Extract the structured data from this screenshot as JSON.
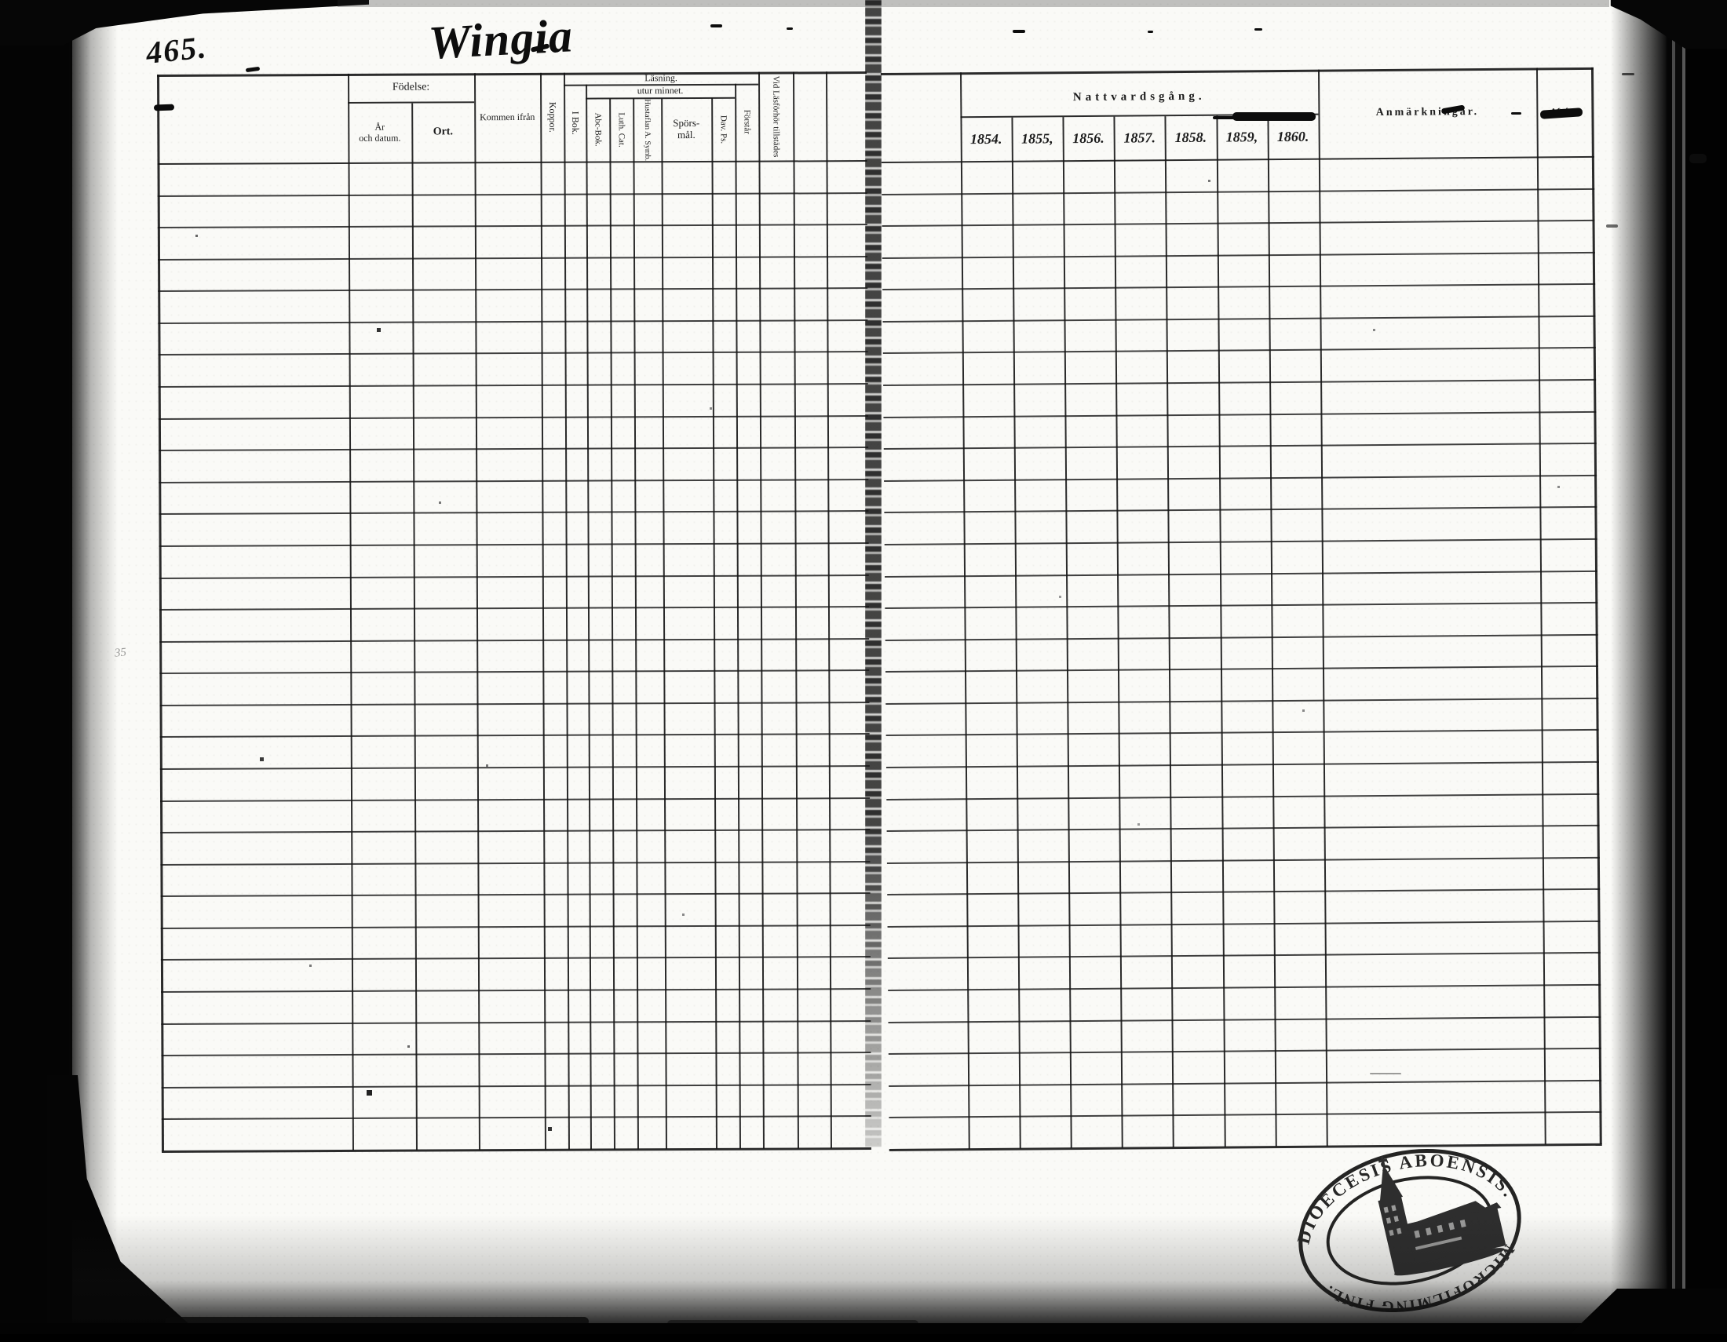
{
  "document": {
    "page_number": "465.",
    "parish_title": "Wingia",
    "margin_note": "35"
  },
  "left_table": {
    "columns": {
      "fodelse_group": "Födelse:",
      "ar_line1": "År",
      "ar_line2": "och datum.",
      "ort": "Ort.",
      "kommen_ifran": "Kommen ifrån",
      "koppor": "Koppor.",
      "lasning_group": "Läsning.",
      "utur_minnet": "utur minnet.",
      "i_bok": "I Bok.",
      "abc_bok": "Abc-Bok.",
      "luth_cat": "Luth. Cat.",
      "hustaflan_symb": "Hustaflan A. Symb.",
      "sporsmal_line1": "Spörs-",
      "sporsmal_line2": "mål.",
      "dav_ps": "Dav. Ps.",
      "forstar": "Förstår",
      "vid_lasforhor": "Vid Läsförhör tillstädes"
    },
    "row_count": 31
  },
  "right_table": {
    "columns": {
      "nattvardsgang_group": "Nattvardsgång.",
      "years": [
        "1854.",
        "1855,",
        "1856.",
        "1857.",
        "1858.",
        "1859,",
        "1860."
      ],
      "anmarkningar": "Anmärkningar.",
      "afgatt": "Afgått."
    },
    "row_count": 31
  },
  "stamp": {
    "top_text": "DIOECESIS ABOENSIS.",
    "bottom_text": "MICROFILMING FINL."
  }
}
